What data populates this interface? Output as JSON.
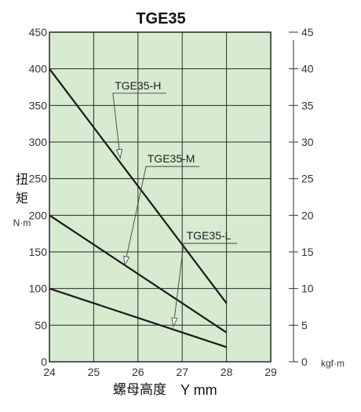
{
  "chart_data": {
    "type": "line",
    "title": "TGE35",
    "xlabel_cjk": "螺母高度",
    "xlabel_unit": "Y mm",
    "ylabel_lines": [
      "扭",
      "矩"
    ],
    "ylabel_unit_left": "N·m",
    "ylabel_unit_right": "kgf·m",
    "xlim": [
      24,
      29
    ],
    "ylim": [
      0,
      450
    ],
    "ylim_right": [
      0,
      45
    ],
    "xticks": [
      24,
      25,
      26,
      27,
      28,
      29
    ],
    "yticks": [
      0,
      50,
      100,
      150,
      200,
      250,
      300,
      350,
      400,
      450
    ],
    "yticks_right": [
      0,
      5,
      10,
      15,
      20,
      25,
      30,
      35,
      40,
      45
    ],
    "grid": true,
    "background": "#d6ebd0",
    "line_color": "#1a1a1a",
    "series": [
      {
        "name": "TGE35-H",
        "x": [
          24,
          28
        ],
        "y": [
          400,
          80
        ]
      },
      {
        "name": "TGE35-M",
        "x": [
          24,
          28
        ],
        "y": [
          200,
          40
        ]
      },
      {
        "name": "TGE35-L",
        "x": [
          24,
          28
        ],
        "y": [
          100,
          20
        ]
      }
    ],
    "annotations": [
      {
        "text": "TGE35-H",
        "series": 0,
        "label_x": 26.0,
        "label_y": 372,
        "point_x": 25.6,
        "point_y": 278
      },
      {
        "text": "TGE35-M",
        "series": 1,
        "label_x": 26.75,
        "label_y": 272,
        "point_x": 25.7,
        "point_y": 132
      },
      {
        "text": "TGE35-L",
        "series": 2,
        "label_x": 27.6,
        "label_y": 167,
        "point_x": 26.8,
        "point_y": 48
      }
    ]
  }
}
